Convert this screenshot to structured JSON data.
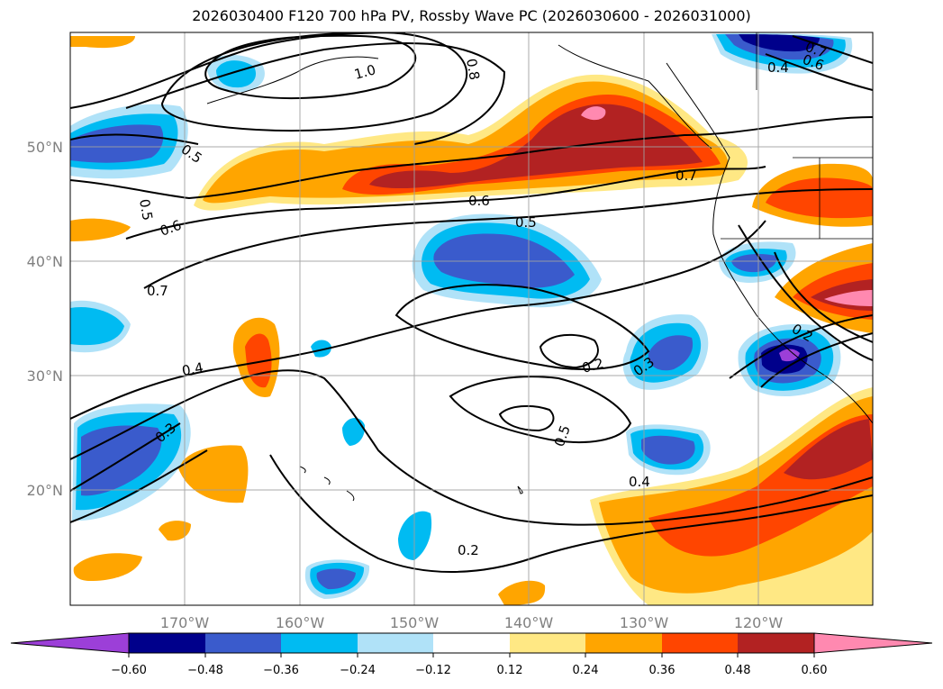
{
  "title": "2026030400 F120 700 hPa PV, Rossby Wave PC (2026030600 - 2026031000)",
  "lat_labels": [
    "50°N",
    "40°N",
    "30°N",
    "20°N"
  ],
  "lon_labels": [
    "170°W",
    "160°W",
    "150°W",
    "140°W",
    "130°W",
    "120°W"
  ],
  "colorbar": {
    "colors": [
      "#9c3fd8",
      "#00008b",
      "#3a5bcc",
      "#00bbf2",
      "#b0e2f8",
      "#ffffff",
      "#ffe884",
      "#ffa500",
      "#ff4500",
      "#b22222",
      "#ff89b0"
    ],
    "tick_labels": [
      "−0.60",
      "−0.48",
      "−0.36",
      "−0.24",
      "−0.12",
      "0.12",
      "0.24",
      "0.36",
      "0.48",
      "0.60"
    ]
  },
  "contour_labels": [
    "0.5",
    "0.5",
    "0.6",
    "0.7",
    "0.4",
    "0.3",
    "1.0",
    "0.8",
    "0.6",
    "0.5",
    "0.7",
    "0.2",
    "0.3",
    "0.5",
    "0.4",
    "0.2",
    "0.2",
    "0.7",
    "0.6",
    "0.4"
  ]
}
